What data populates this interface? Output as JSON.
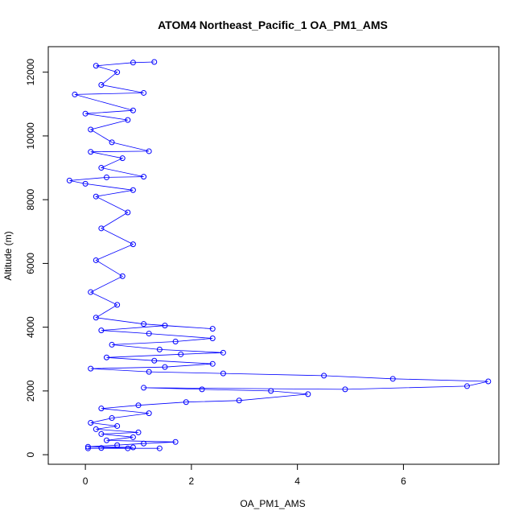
{
  "chart_data": {
    "type": "scatter",
    "title": "ATOM4 Northeast_Pacific_1 OA_PM1_AMS",
    "xlabel": "OA_PM1_AMS",
    "ylabel": "Altitude (m)",
    "xlim": [
      -0.7,
      7.8
    ],
    "ylim": [
      -300,
      12800
    ],
    "xticks": [
      0,
      2,
      4,
      6
    ],
    "yticks": [
      0,
      2000,
      4000,
      6000,
      8000,
      10000,
      12000
    ],
    "grid": false,
    "legend": "none",
    "marker": "open-circle",
    "connected": true,
    "series_color": "#0000ff",
    "series": [
      {
        "values": [
          [
            0.05,
            200
          ],
          [
            0.8,
            200
          ],
          [
            1.4,
            200
          ],
          [
            0.3,
            210
          ],
          [
            0.9,
            230
          ],
          [
            0.05,
            250
          ],
          [
            0.6,
            300
          ],
          [
            1.1,
            350
          ],
          [
            1.7,
            400
          ],
          [
            0.4,
            450
          ],
          [
            0.9,
            550
          ],
          [
            0.3,
            650
          ],
          [
            1.0,
            700
          ],
          [
            0.2,
            800
          ],
          [
            0.6,
            900
          ],
          [
            0.1,
            1000
          ],
          [
            0.5,
            1150
          ],
          [
            1.2,
            1300
          ],
          [
            0.3,
            1450
          ],
          [
            1.0,
            1550
          ],
          [
            1.9,
            1650
          ],
          [
            2.9,
            1700
          ],
          [
            4.2,
            1900
          ],
          [
            3.5,
            2000
          ],
          [
            2.2,
            2050
          ],
          [
            1.1,
            2100
          ],
          [
            4.9,
            2050
          ],
          [
            7.2,
            2150
          ],
          [
            7.6,
            2300
          ],
          [
            5.8,
            2380
          ],
          [
            4.5,
            2480
          ],
          [
            2.6,
            2550
          ],
          [
            1.2,
            2600
          ],
          [
            0.1,
            2700
          ],
          [
            1.5,
            2750
          ],
          [
            2.4,
            2850
          ],
          [
            1.3,
            2950
          ],
          [
            0.4,
            3050
          ],
          [
            1.8,
            3150
          ],
          [
            2.6,
            3200
          ],
          [
            1.4,
            3300
          ],
          [
            0.5,
            3450
          ],
          [
            1.7,
            3550
          ],
          [
            2.4,
            3650
          ],
          [
            1.2,
            3800
          ],
          [
            0.3,
            3900
          ],
          [
            1.5,
            4050
          ],
          [
            2.4,
            3950
          ],
          [
            1.1,
            4100
          ],
          [
            0.2,
            4300
          ],
          [
            0.6,
            4700
          ],
          [
            0.1,
            5100
          ],
          [
            0.7,
            5600
          ],
          [
            0.2,
            6100
          ],
          [
            0.9,
            6600
          ],
          [
            0.3,
            7100
          ],
          [
            0.8,
            7600
          ],
          [
            0.2,
            8100
          ],
          [
            0.9,
            8300
          ],
          [
            0.0,
            8500
          ],
          [
            -0.3,
            8600
          ],
          [
            0.4,
            8700
          ],
          [
            1.1,
            8720
          ],
          [
            0.3,
            9000
          ],
          [
            0.7,
            9300
          ],
          [
            0.1,
            9500
          ],
          [
            1.2,
            9520
          ],
          [
            0.5,
            9800
          ],
          [
            0.1,
            10200
          ],
          [
            0.8,
            10500
          ],
          [
            0.0,
            10700
          ],
          [
            0.9,
            10800
          ],
          [
            -0.2,
            11300
          ],
          [
            1.1,
            11350
          ],
          [
            0.3,
            11600
          ],
          [
            0.6,
            12000
          ],
          [
            0.2,
            12200
          ],
          [
            0.9,
            12300
          ],
          [
            1.3,
            12320
          ]
        ]
      }
    ]
  }
}
